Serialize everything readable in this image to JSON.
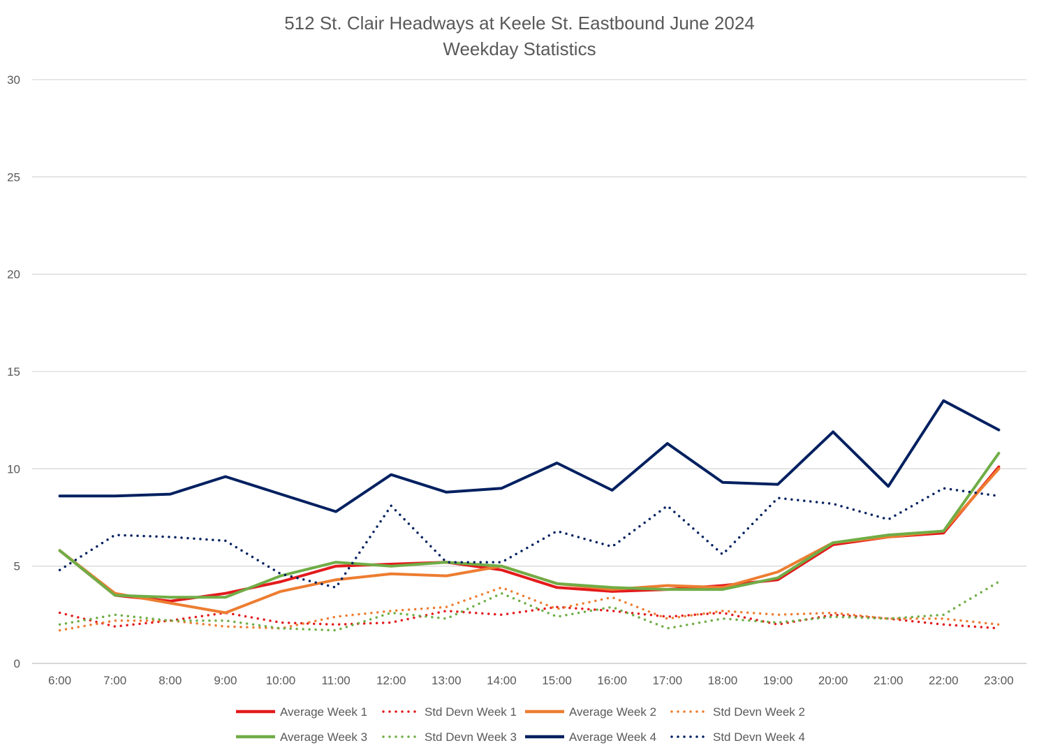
{
  "chart_data": {
    "type": "line",
    "title": "512 St. Clair Headways at Keele St. Eastbound June 2024",
    "subtitle": "Weekday Statistics",
    "xlabel": "",
    "ylabel": "",
    "ylim": [
      0,
      30
    ],
    "yticks": [
      "0",
      "5",
      "10",
      "15",
      "20",
      "25",
      "30"
    ],
    "grid": true,
    "legend_position": "bottom",
    "categories": [
      "6:00",
      "7:00",
      "8:00",
      "9:00",
      "10:00",
      "11:00",
      "12:00",
      "13:00",
      "14:00",
      "15:00",
      "16:00",
      "17:00",
      "18:00",
      "19:00",
      "20:00",
      "21:00",
      "22:00",
      "23:00"
    ],
    "series": [
      {
        "name": "Average Week 1",
        "color": "#e31a1c",
        "style": "solid",
        "values": [
          5.8,
          3.5,
          3.2,
          3.6,
          4.2,
          5.0,
          5.1,
          5.2,
          4.8,
          3.9,
          3.7,
          3.8,
          4.0,
          4.3,
          6.1,
          6.5,
          6.7,
          10.1
        ]
      },
      {
        "name": "Std Devn Week 1",
        "color": "#e31a1c",
        "style": "dotted",
        "values": [
          2.6,
          1.9,
          2.2,
          2.6,
          2.1,
          2.0,
          2.1,
          2.7,
          2.5,
          2.9,
          2.7,
          2.4,
          2.6,
          2.0,
          2.5,
          2.3,
          2.0,
          1.8
        ]
      },
      {
        "name": "Average Week 2",
        "color": "#ed7d31",
        "style": "solid",
        "values": [
          5.8,
          3.6,
          3.1,
          2.6,
          3.7,
          4.3,
          4.6,
          4.5,
          5.0,
          4.1,
          3.8,
          4.0,
          3.9,
          4.7,
          6.2,
          6.5,
          6.8,
          10.0
        ]
      },
      {
        "name": "Std Devn Week 2",
        "color": "#ed7d31",
        "style": "dotted",
        "values": [
          1.7,
          2.2,
          2.2,
          1.9,
          1.8,
          2.4,
          2.7,
          2.9,
          3.9,
          2.8,
          3.4,
          2.3,
          2.7,
          2.5,
          2.6,
          2.3,
          2.3,
          2.0
        ]
      },
      {
        "name": "Average Week 3",
        "color": "#70ad47",
        "style": "solid",
        "values": [
          5.8,
          3.5,
          3.4,
          3.4,
          4.5,
          5.2,
          5.0,
          5.2,
          5.0,
          4.1,
          3.9,
          3.8,
          3.8,
          4.4,
          6.2,
          6.6,
          6.8,
          10.8
        ]
      },
      {
        "name": "Std Devn Week 3",
        "color": "#70ad47",
        "style": "dotted",
        "values": [
          2.0,
          2.5,
          2.2,
          2.2,
          1.8,
          1.7,
          2.6,
          2.3,
          3.6,
          2.4,
          2.9,
          1.8,
          2.3,
          2.1,
          2.4,
          2.3,
          2.5,
          4.2
        ]
      },
      {
        "name": "Average Week 4",
        "color": "#002060",
        "style": "solid",
        "values": [
          8.6,
          8.6,
          8.7,
          9.6,
          8.7,
          7.8,
          9.7,
          8.8,
          9.0,
          10.3,
          8.9,
          11.3,
          9.3,
          9.2,
          11.9,
          9.1,
          13.5,
          12.0
        ]
      },
      {
        "name": "Std Devn Week 4",
        "color": "#002060",
        "style": "dotted",
        "values": [
          4.8,
          6.6,
          6.5,
          6.3,
          4.6,
          3.9,
          8.1,
          5.2,
          5.2,
          6.8,
          6.0,
          8.1,
          5.6,
          8.5,
          8.2,
          7.4,
          9.0,
          8.6
        ]
      }
    ]
  }
}
